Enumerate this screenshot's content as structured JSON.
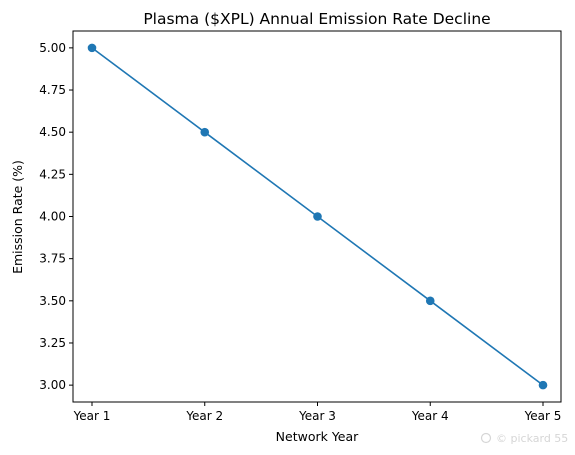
{
  "chart_data": {
    "type": "line",
    "title": "Plasma ($XPL) Annual Emission Rate Decline",
    "xlabel": "Network Year",
    "ylabel": "Emission Rate (%)",
    "categories": [
      "Year 1",
      "Year 2",
      "Year 3",
      "Year 4",
      "Year 5"
    ],
    "series": [
      {
        "values": [
          5.0,
          4.5,
          4.0,
          3.5,
          3.0
        ],
        "color": "#1f77b4",
        "marker": "circle"
      }
    ],
    "ylim": [
      2.9,
      5.1
    ],
    "yticks": [
      "3.00",
      "3.25",
      "3.50",
      "3.75",
      "4.00",
      "4.25",
      "4.50",
      "4.75",
      "5.00"
    ],
    "grid": false,
    "legend": "none"
  },
  "watermark": "© pickard 55"
}
